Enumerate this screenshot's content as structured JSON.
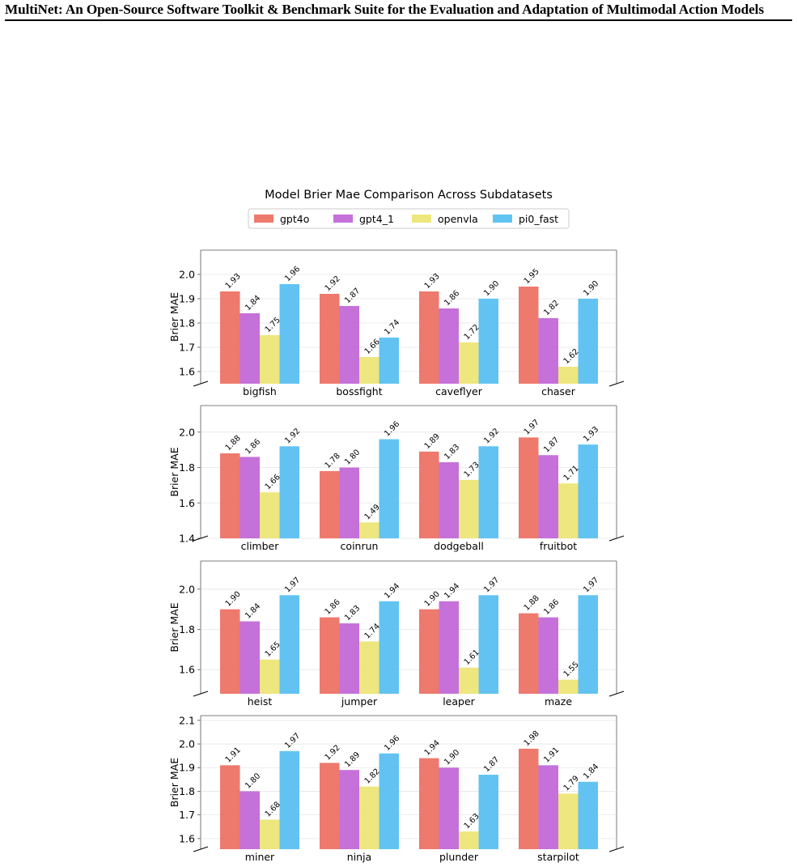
{
  "page_header": "MultiNet: An Open-Source Software Toolkit & Benchmark Suite for the Evaluation and Adaptation of Multimodal Action Models",
  "figure_title": "Model Brier Mae Comparison Across Subdatasets",
  "colors": {
    "gpt4o": "#ed6e61",
    "gpt4_1": "#c065d6",
    "openvla": "#ede473",
    "pi0_fast": "#55bef1"
  },
  "chart_data": [
    {
      "type": "bar",
      "ylabel": "Brier MAE",
      "categories": [
        "bigfish",
        "bossfight",
        "caveflyer",
        "chaser"
      ],
      "ylim": [
        1.55,
        2.1
      ],
      "yticks": [
        "1.6",
        "1.7",
        "1.8",
        "1.9",
        "2.0"
      ],
      "legend": "top-center",
      "grid": "horizontal",
      "series": [
        {
          "name": "gpt4o",
          "values": [
            1.93,
            1.92,
            1.93,
            1.95
          ],
          "labels": [
            "1.93",
            "1.92",
            "1.93",
            "1.95"
          ]
        },
        {
          "name": "gpt4_1",
          "values": [
            1.84,
            1.87,
            1.86,
            1.82
          ],
          "labels": [
            "1.84",
            "1.87",
            "1.86",
            "1.82"
          ]
        },
        {
          "name": "openvla",
          "values": [
            1.75,
            1.66,
            1.72,
            1.62
          ],
          "labels": [
            "1.75",
            "1.66",
            "1.72",
            "1.62"
          ]
        },
        {
          "name": "pi0_fast",
          "values": [
            1.96,
            1.74,
            1.9,
            1.9
          ],
          "labels": [
            "1.96",
            "1.74",
            "1.90",
            "1.90"
          ]
        }
      ]
    },
    {
      "type": "bar",
      "ylabel": "Brier MAE",
      "categories": [
        "climber",
        "coinrun",
        "dodgeball",
        "fruitbot"
      ],
      "ylim": [
        1.4,
        2.15
      ],
      "yticks": [
        "1.4",
        "1.6",
        "1.8",
        "2.0"
      ],
      "grid": "horizontal",
      "series": [
        {
          "name": "gpt4o",
          "values": [
            1.88,
            1.78,
            1.89,
            1.97
          ],
          "labels": [
            "1.88",
            "1.78",
            "1.89",
            "1.97"
          ]
        },
        {
          "name": "gpt4_1",
          "values": [
            1.86,
            1.8,
            1.83,
            1.87
          ],
          "labels": [
            "1.86",
            "1.80",
            "1.83",
            "1.87"
          ]
        },
        {
          "name": "openvla",
          "values": [
            1.66,
            1.49,
            1.73,
            1.71
          ],
          "labels": [
            "1.66",
            "1.49",
            "1.73",
            "1.71"
          ]
        },
        {
          "name": "pi0_fast",
          "values": [
            1.92,
            1.96,
            1.92,
            1.93
          ],
          "labels": [
            "1.92",
            "1.96",
            "1.92",
            "1.93"
          ]
        }
      ]
    },
    {
      "type": "bar",
      "ylabel": "Brier MAE",
      "categories": [
        "heist",
        "jumper",
        "leaper",
        "maze"
      ],
      "ylim": [
        1.48,
        2.14
      ],
      "yticks": [
        "1.6",
        "1.8",
        "2.0"
      ],
      "grid": "horizontal",
      "series": [
        {
          "name": "gpt4o",
          "values": [
            1.9,
            1.86,
            1.9,
            1.88
          ],
          "labels": [
            "1.90",
            "1.86",
            "1.90",
            "1.88"
          ]
        },
        {
          "name": "gpt4_1",
          "values": [
            1.84,
            1.83,
            1.94,
            1.86
          ],
          "labels": [
            "1.84",
            "1.83",
            "1.94",
            "1.86"
          ]
        },
        {
          "name": "openvla",
          "values": [
            1.65,
            1.74,
            1.61,
            1.55
          ],
          "labels": [
            "1.65",
            "1.74",
            "1.61",
            "1.55"
          ]
        },
        {
          "name": "pi0_fast",
          "values": [
            1.97,
            1.94,
            1.97,
            1.97
          ],
          "labels": [
            "1.97",
            "1.94",
            "1.97",
            "1.97"
          ]
        }
      ]
    },
    {
      "type": "bar",
      "ylabel": "Brier MAE",
      "categories": [
        "miner",
        "ninja",
        "plunder",
        "starpilot"
      ],
      "ylim": [
        1.555,
        2.12
      ],
      "yticks": [
        "1.6",
        "1.7",
        "1.8",
        "1.9",
        "2.0",
        "2.1"
      ],
      "grid": "horizontal",
      "series": [
        {
          "name": "gpt4o",
          "values": [
            1.91,
            1.92,
            1.94,
            1.98
          ],
          "labels": [
            "1.91",
            "1.92",
            "1.94",
            "1.98"
          ]
        },
        {
          "name": "gpt4_1",
          "values": [
            1.8,
            1.89,
            1.9,
            1.91
          ],
          "labels": [
            "1.80",
            "1.89",
            "1.90",
            "1.91"
          ]
        },
        {
          "name": "openvla",
          "values": [
            1.68,
            1.82,
            1.63,
            1.79
          ],
          "labels": [
            "1.68",
            "1.82",
            "1.63",
            "1.79"
          ]
        },
        {
          "name": "pi0_fast",
          "values": [
            1.97,
            1.96,
            1.87,
            1.84
          ],
          "labels": [
            "1.97",
            "1.96",
            "1.87",
            "1.84"
          ]
        }
      ]
    }
  ]
}
